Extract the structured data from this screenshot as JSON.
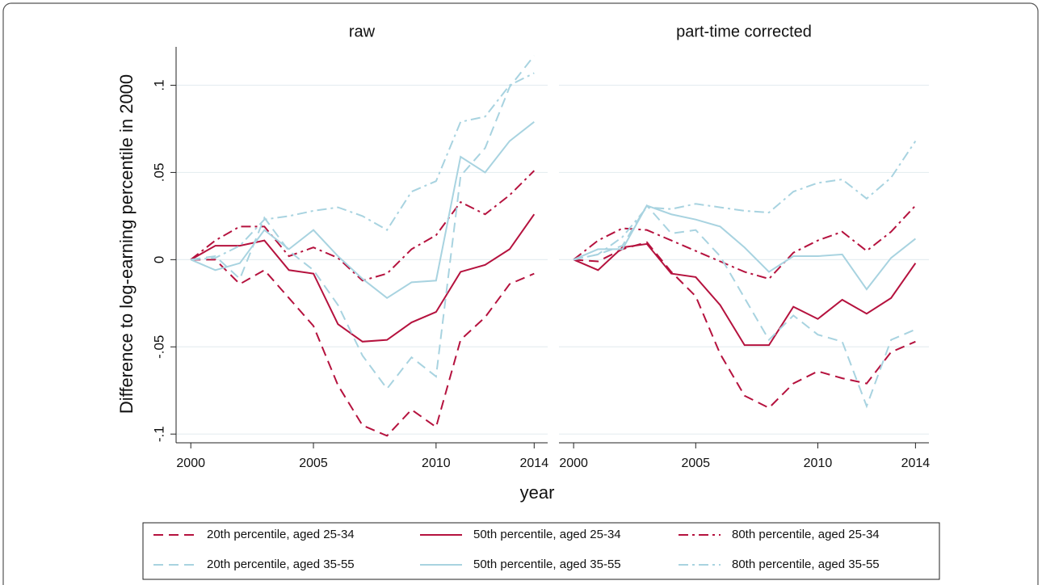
{
  "chart_data": [
    {
      "type": "line",
      "title": "raw",
      "ylabel": "Difference to log-earning percentile in 2000",
      "xlabel": "year",
      "x": [
        2000,
        2001,
        2002,
        2003,
        2004,
        2005,
        2006,
        2007,
        2008,
        2009,
        2010,
        2011,
        2012,
        2013,
        2014
      ],
      "xlim": [
        1999.4,
        2014.55
      ],
      "xticks": [
        2000,
        2005,
        2010,
        2014
      ],
      "ylim": [
        -0.105,
        0.122
      ],
      "yticks": [
        {
          "value": -0.1,
          "label": "-.1"
        },
        {
          "value": -0.05,
          "label": "-.05"
        },
        0,
        {
          "value": 0.05,
          "label": ".05"
        },
        {
          "value": 0.1,
          "label": ".1"
        }
      ],
      "yaxis": true,
      "grid": true,
      "series": [
        {
          "name": "20th percentile, aged 25-34",
          "color": "#b5123e",
          "dash": "dashed",
          "values": [
            0,
            0,
            -0.014,
            -0.006,
            -0.022,
            -0.038,
            -0.072,
            -0.095,
            -0.101,
            -0.086,
            -0.096,
            -0.046,
            -0.033,
            -0.014,
            -0.008
          ]
        },
        {
          "name": "50th percentile, aged 25-34",
          "color": "#b5123e",
          "dash": "solid",
          "values": [
            0,
            0.008,
            0.008,
            0.011,
            -0.006,
            -0.008,
            -0.037,
            -0.047,
            -0.046,
            -0.036,
            -0.03,
            -0.007,
            -0.003,
            0.006,
            0.026
          ]
        },
        {
          "name": "80th percentile, aged 25-34",
          "color": "#b5123e",
          "dash": "dashdot",
          "values": [
            0,
            0.011,
            0.019,
            0.019,
            0.002,
            0.007,
            0.001,
            -0.012,
            -0.008,
            0.006,
            0.014,
            0.033,
            0.026,
            0.037,
            0.051
          ]
        },
        {
          "name": "20th percentile, aged 35-55",
          "color": "#a8d3e0",
          "dash": "dashed",
          "values": [
            0,
            0.002,
            -0.011,
            0.024,
            0.005,
            -0.006,
            -0.026,
            -0.055,
            -0.074,
            -0.056,
            -0.067,
            0.048,
            0.064,
            0.099,
            0.117
          ]
        },
        {
          "name": "50th percentile, aged 35-55",
          "color": "#a8d3e0",
          "dash": "solid",
          "values": [
            0,
            -0.006,
            -0.002,
            0.017,
            0.006,
            0.017,
            0.002,
            -0.011,
            -0.022,
            -0.013,
            -0.012,
            0.059,
            0.05,
            0.068,
            0.079
          ]
        },
        {
          "name": "80th percentile, aged 35-55",
          "color": "#a8d3e0",
          "dash": "dashdot",
          "values": [
            0,
            0.001,
            0.008,
            0.023,
            0.025,
            0.028,
            0.03,
            0.025,
            0.017,
            0.039,
            0.045,
            0.079,
            0.082,
            0.1,
            0.107
          ]
        }
      ]
    },
    {
      "type": "line",
      "title": "part-time corrected",
      "x": [
        2000,
        2001,
        2002,
        2003,
        2004,
        2005,
        2006,
        2007,
        2008,
        2009,
        2010,
        2011,
        2012,
        2013,
        2014
      ],
      "xlim": [
        1999.4,
        2014.55
      ],
      "xticks": [
        2000,
        2005,
        2010,
        2014
      ],
      "ylim": [
        -0.105,
        0.122
      ],
      "yticks": [
        -0.1,
        -0.05,
        0,
        0.05,
        0.1
      ],
      "yaxis": false,
      "grid": true,
      "series": [
        {
          "color": "#b5123e",
          "dash": "dashed",
          "values": [
            0,
            -0.001,
            0.006,
            0.01,
            -0.007,
            -0.021,
            -0.054,
            -0.078,
            -0.085,
            -0.071,
            -0.064,
            -0.068,
            -0.071,
            -0.053,
            -0.047
          ]
        },
        {
          "color": "#b5123e",
          "dash": "solid",
          "values": [
            0,
            -0.006,
            0.007,
            0.009,
            -0.008,
            -0.01,
            -0.026,
            -0.049,
            -0.049,
            -0.027,
            -0.034,
            -0.023,
            -0.031,
            -0.022,
            -0.002
          ]
        },
        {
          "color": "#b5123e",
          "dash": "dashdot",
          "values": [
            0,
            0.011,
            0.018,
            0.017,
            0.011,
            0.005,
            -0.001,
            -0.007,
            -0.011,
            0.004,
            0.011,
            0.016,
            0.005,
            0.016,
            0.031
          ]
        },
        {
          "color": "#a8d3e0",
          "dash": "dashed",
          "values": [
            0,
            0.003,
            0.008,
            0.031,
            0.015,
            0.017,
            0.002,
            -0.022,
            -0.046,
            -0.032,
            -0.043,
            -0.047,
            -0.084,
            -0.046,
            -0.04
          ]
        },
        {
          "color": "#a8d3e0",
          "dash": "solid",
          "values": [
            0,
            0.006,
            0.006,
            0.031,
            0.026,
            0.023,
            0.019,
            0.007,
            -0.007,
            0.002,
            0.002,
            0.003,
            -0.017,
            0.001,
            0.012
          ]
        },
        {
          "color": "#a8d3e0",
          "dash": "dashdot",
          "values": [
            0,
            0.003,
            0.013,
            0.03,
            0.029,
            0.032,
            0.03,
            0.028,
            0.027,
            0.039,
            0.044,
            0.046,
            0.035,
            0.047,
            0.068
          ]
        }
      ]
    }
  ]
}
